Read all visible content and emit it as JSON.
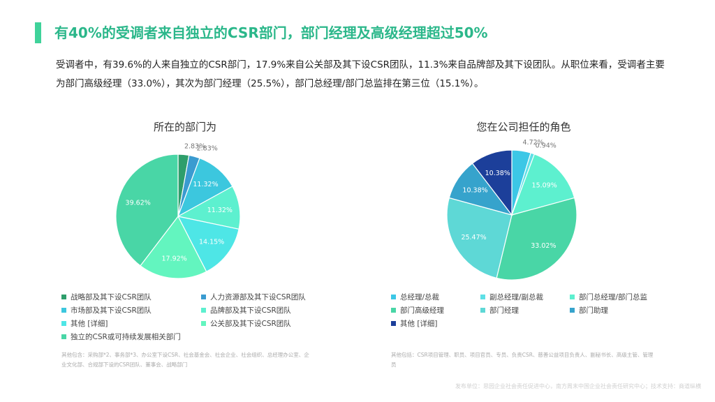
{
  "header": {
    "title": "有40%的受调者来自独立的CSR部门，部门经理及高级经理超过50%",
    "accent_color": "#3fd29a"
  },
  "description": "受调者中，有39.6%的人来自独立的CSR部门，17.9%来自公关部及其下设CSR团队，11.3%来自品牌部及其下设团队。从职位来看，受调者主要为部门高级经理（33.0%），其次为部门经理（25.5%），部门总经理/部门总监排在第三位（15.1%）。",
  "chart_data": [
    {
      "type": "pie",
      "title": "所在的部门为",
      "slices": [
        {
          "label": "战略部及其下设CSR团队",
          "value": 2.83,
          "display": "2.83%",
          "color": "#2e9e6b"
        },
        {
          "label": "人力资源部及其下设CSR团队",
          "value": 2.83,
          "display": "2.83%",
          "color": "#3a9bd0"
        },
        {
          "label": "市场部及其下设CSR团队",
          "value": 11.32,
          "display": "11.32%",
          "color": "#3cc7de"
        },
        {
          "label": "品牌部及其下设CSR团队",
          "value": 11.32,
          "display": "11.32%",
          "color": "#5df0cf"
        },
        {
          "label": "其他 [详细]",
          "value": 14.15,
          "display": "14.15%",
          "color": "#4ee6e6"
        },
        {
          "label": "公关部及其下设CSR团队",
          "value": 17.92,
          "display": "17.92%",
          "color": "#63f5bf"
        },
        {
          "label": "独立的CSR或可持续发展相关部门",
          "value": 39.62,
          "display": "39.62%",
          "color": "#49d6a6"
        }
      ]
    },
    {
      "type": "pie",
      "title": "您在公司担任的角色",
      "slices": [
        {
          "label": "总经理/总裁",
          "value": 4.72,
          "display": "4.72%",
          "color": "#3cc7e6"
        },
        {
          "label": "副总经理/副总裁",
          "value": 0.94,
          "display": "0.94%",
          "color": "#5ee0e6"
        },
        {
          "label": "部门总经理/部门总监",
          "value": 15.09,
          "display": "15.09%",
          "color": "#5df0cf"
        },
        {
          "label": "部门高级经理",
          "value": 33.02,
          "display": "33.02%",
          "color": "#49d6a6"
        },
        {
          "label": "部门经理",
          "value": 25.47,
          "display": "25.47%",
          "color": "#5ed8d6"
        },
        {
          "label": "部门助理",
          "value": 10.38,
          "display": "10.38%",
          "color": "#36a3cc"
        },
        {
          "label": "其他 [详细]",
          "value": 10.38,
          "display": "10.38%",
          "color": "#1c3f9a"
        }
      ]
    }
  ],
  "notes": {
    "left": "其他包含：采购部*2、事务部*3、办公室下设CSR、社会基金会、社会企业、社会组织、总经理办公室、企业文化部、合规部下设的CSR团队、董事会、战略部门",
    "right": "其他包括：CSR项目管理、职员、项目官员、专员、负责CSR、慈善公益项目负责人、副秘书长、高级主管、管理员"
  },
  "footer": "发布单位：思园企业社会责任促进中心，南方周末中国企业社会责任研究中心；技术支持：商道纵横"
}
